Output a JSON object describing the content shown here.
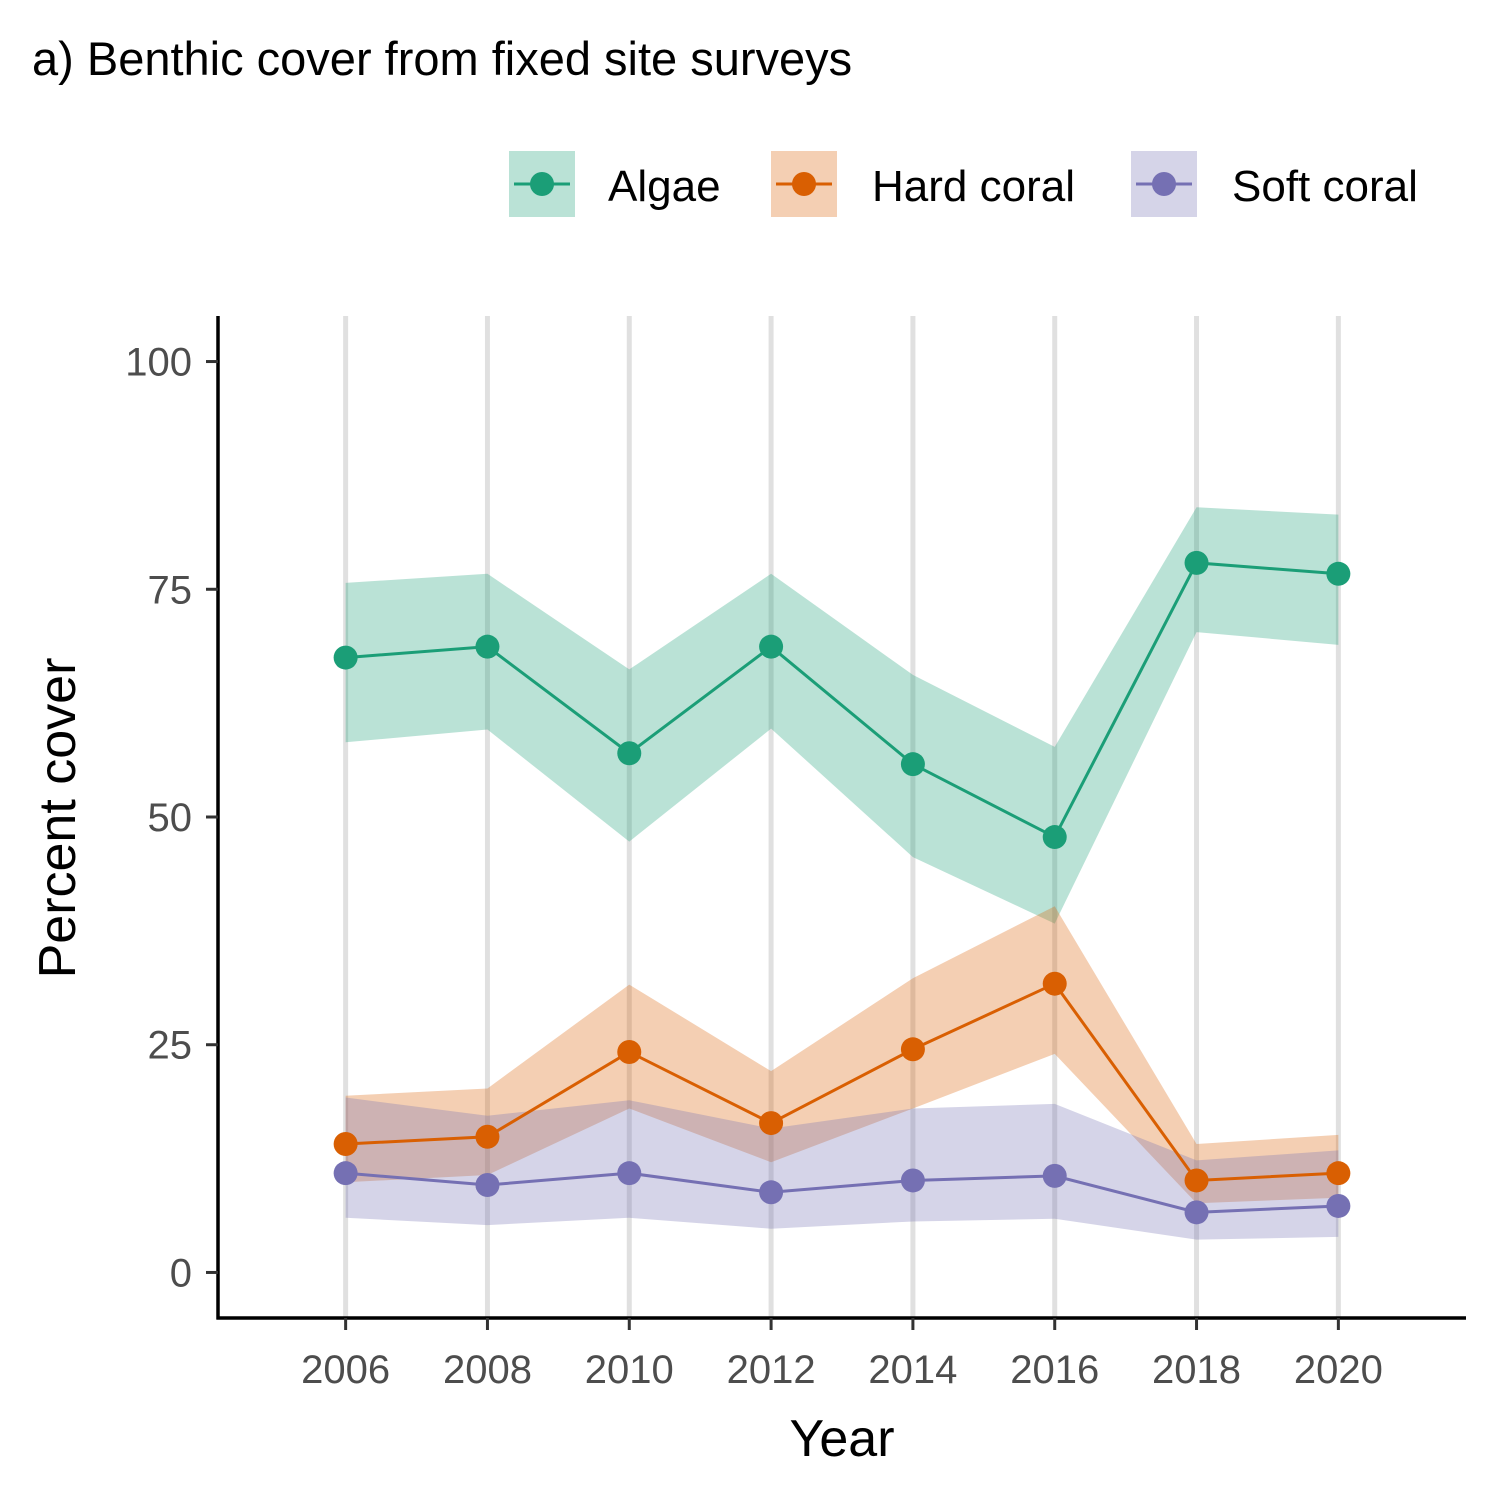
{
  "chart_data": {
    "type": "line",
    "title": "a) Benthic cover from fixed site surveys",
    "xlabel": "Year",
    "ylabel": "Percent cover",
    "x": [
      2006,
      2008,
      2010,
      2012,
      2014,
      2016,
      2018,
      2020
    ],
    "xlim": [
      2004.2,
      2021.8
    ],
    "ylim": [
      -5,
      105
    ],
    "xticks": [
      "2006",
      "2008",
      "2010",
      "2012",
      "2014",
      "2016",
      "2018",
      "2020"
    ],
    "yticks": [
      "0",
      "25",
      "50",
      "75",
      "100"
    ],
    "ytick_values": [
      0,
      25,
      50,
      75,
      100
    ],
    "grid": "vertical major lines only",
    "legend_position": "top-right",
    "series": [
      {
        "name": "Algae",
        "color": "#1b9e77",
        "values": [
          67.5,
          68.7,
          57.0,
          68.7,
          55.8,
          47.8,
          77.9,
          76.7
        ],
        "lower": [
          58.2,
          59.6,
          47.3,
          59.7,
          45.6,
          38.3,
          70.3,
          68.9
        ],
        "upper": [
          75.7,
          76.7,
          66.2,
          76.7,
          65.6,
          57.7,
          84.0,
          83.2
        ]
      },
      {
        "name": "Hard coral",
        "color": "#d95f02",
        "values": [
          14.1,
          14.9,
          24.2,
          16.4,
          24.5,
          31.7,
          10.1,
          10.9
        ],
        "lower": [
          9.9,
          10.7,
          18.0,
          12.1,
          18.0,
          24.0,
          7.6,
          8.2
        ],
        "upper": [
          19.4,
          20.2,
          31.6,
          22.1,
          32.3,
          40.2,
          14.1,
          15.1
        ]
      },
      {
        "name": "Soft coral",
        "color": "#7570b3",
        "values": [
          10.9,
          9.6,
          10.9,
          8.8,
          10.1,
          10.6,
          6.6,
          7.3
        ],
        "lower": [
          6.0,
          5.2,
          6.0,
          4.8,
          5.6,
          5.9,
          3.6,
          3.9
        ],
        "upper": [
          19.2,
          17.2,
          18.9,
          15.8,
          18.0,
          18.5,
          12.3,
          13.4
        ]
      }
    ]
  }
}
